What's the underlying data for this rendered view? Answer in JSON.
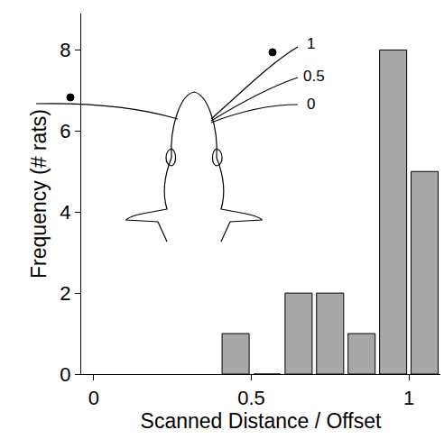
{
  "chart_data": {
    "type": "histogram",
    "xlabel": "Scanned Distance / Offset",
    "ylabel": "Frequency (# rats)",
    "bins": [
      0.4,
      0.5,
      0.6,
      0.7,
      0.8,
      0.9,
      1.0,
      1.1
    ],
    "values": [
      1,
      0,
      2,
      2,
      1,
      8,
      5
    ],
    "color": "#a8a8a8",
    "xlim": [
      -0.04,
      1.1
    ],
    "ylim": [
      0,
      8.9
    ],
    "xticks": [
      0,
      0.5,
      1
    ],
    "yticks": [
      0,
      2,
      4,
      6,
      8
    ],
    "grid": false,
    "annotations": [
      "1",
      "0.5",
      "0"
    ]
  }
}
